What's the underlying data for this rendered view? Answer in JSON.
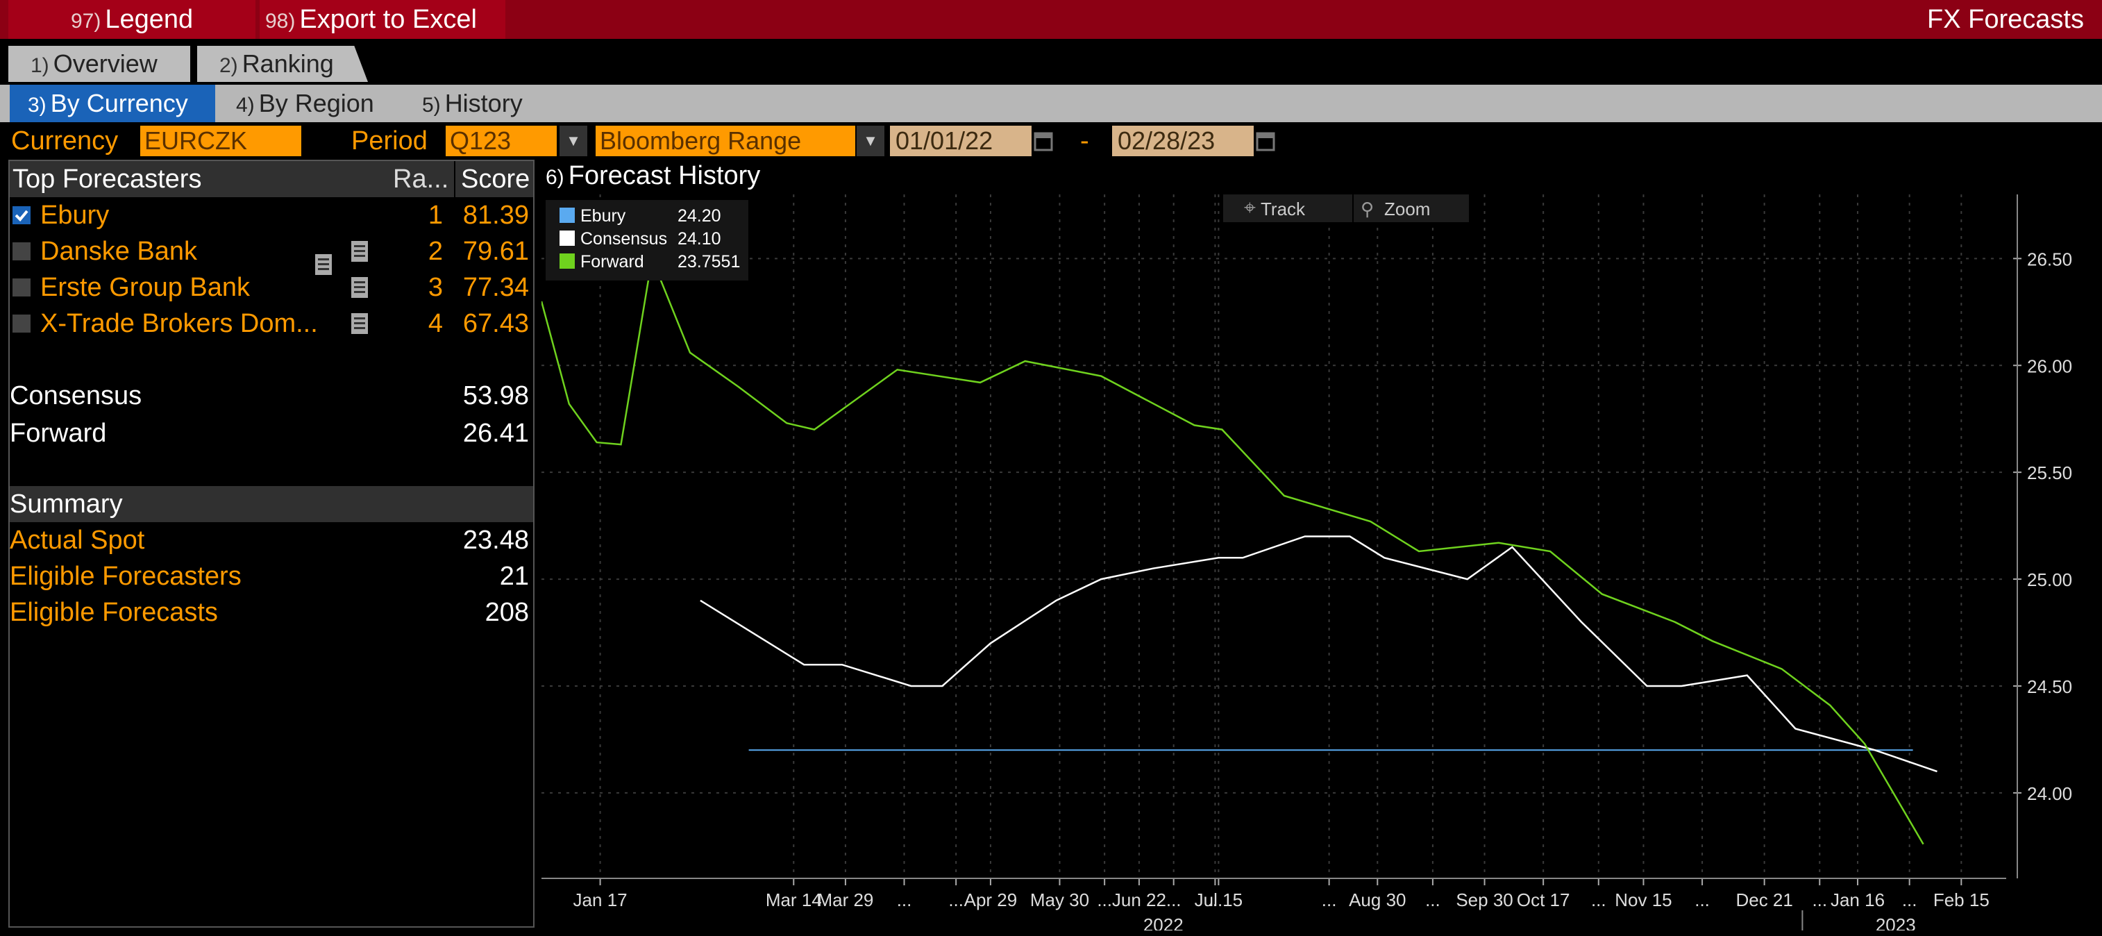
{
  "topbar": {
    "legend_num": "97)",
    "legend_label": "Legend",
    "export_num": "98)",
    "export_label": "Export to Excel",
    "title": "FX Forecasts",
    "bg_color": "#8c0014"
  },
  "tabs": [
    {
      "num": "1)",
      "label": "Overview"
    },
    {
      "num": "2)",
      "label": "Ranking"
    }
  ],
  "subtabs": [
    {
      "num": "3)",
      "label": "By Currency",
      "active": true
    },
    {
      "num": "4)",
      "label": "By Region"
    },
    {
      "num": "5)",
      "label": "History"
    }
  ],
  "filters": {
    "currency_label": "Currency",
    "currency_value": "EURCZK",
    "period_label": "Period",
    "period_value": "Q123",
    "range_value": "Bloomberg Range",
    "date_from": "01/01/22",
    "date_sep": "-",
    "date_to": "02/28/23",
    "accent_color": "#ff9a00"
  },
  "left_panel": {
    "header": {
      "col1": "Top Forecasters",
      "col2": "Ra...",
      "col3": "Score"
    },
    "forecasters": [
      {
        "name": "Ebury",
        "rank": "1",
        "score": "81.39",
        "checked": true
      },
      {
        "name": "Danske Bank",
        "rank": "2",
        "score": "79.61",
        "checked": false
      },
      {
        "name": "Erste Group Bank",
        "rank": "3",
        "score": "77.34",
        "checked": false
      },
      {
        "name": "X-Trade Brokers Dom...",
        "rank": "4",
        "score": "67.43",
        "checked": false
      }
    ],
    "consensus_label": "Consensus",
    "consensus_value": "53.98",
    "forward_label": "Forward",
    "forward_value": "26.41",
    "summary_header": "Summary",
    "summary": [
      {
        "label": "Actual Spot",
        "value": "23.48"
      },
      {
        "label": "Eligible Forecasters",
        "value": "21"
      },
      {
        "label": "Eligible Forecasts",
        "value": "208"
      }
    ]
  },
  "chart": {
    "num": "6)",
    "title": "Forecast History",
    "track_label": "Track",
    "zoom_label": "Zoom"
  },
  "chart_data": {
    "type": "line",
    "legend_position": "top-left",
    "grid": true,
    "ylim": [
      23.6,
      26.8
    ],
    "yticks": [
      "26.50",
      "26.00",
      "25.50",
      "25.00",
      "24.50",
      "24.00"
    ],
    "ytick_values": [
      26.5,
      26.0,
      25.5,
      25.0,
      24.5,
      24.0
    ],
    "xticks": [
      "Jan 17",
      "Mar 14",
      "...",
      "Mar 29",
      "...",
      "Apr 29",
      "...",
      "May 30",
      "...",
      "Jun 22",
      "...",
      "Jul 15",
      "...",
      "Aug 30",
      "...",
      "Sep 30",
      "Oct 17",
      "...",
      "Nov 15",
      "...",
      "Dec 21",
      "...",
      "Jan 16",
      "...",
      "Feb 15"
    ],
    "xtick_values": [
      17,
      73,
      105,
      88,
      120,
      130,
      163,
      150,
      183,
      173,
      195,
      196,
      228,
      242,
      258,
      273,
      290,
      306,
      319,
      336,
      354,
      370,
      381,
      396,
      411
    ],
    "year_labels": [
      {
        "label": "2022",
        "x": 180
      },
      {
        "label": "2023",
        "x": 392
      }
    ],
    "series": [
      {
        "name": "Ebury",
        "legend_value": "24.20",
        "color": "#5aaaf0",
        "x": [
          60,
          397
        ],
        "y": [
          24.2,
          24.2
        ]
      },
      {
        "name": "Consensus",
        "legend_value": "24.10",
        "color": "#ffffff",
        "x": [
          46,
          76,
          87,
          107,
          116,
          130,
          149,
          162,
          177,
          196,
          203,
          221,
          234,
          244,
          268,
          281,
          301,
          320,
          330,
          349,
          363,
          386,
          404
        ],
        "y": [
          24.9,
          24.6,
          24.6,
          24.5,
          24.5,
          24.7,
          24.9,
          25.0,
          25.05,
          25.1,
          25.1,
          25.2,
          25.2,
          25.1,
          25.0,
          25.15,
          24.8,
          24.5,
          24.5,
          24.55,
          24.3,
          24.2,
          24.1
        ]
      },
      {
        "name": "Forward",
        "legend_value": "23.7551",
        "color": "#6fd21e",
        "x": [
          0,
          8,
          16,
          23,
          32,
          43,
          57,
          71,
          79,
          103,
          127,
          140,
          162,
          189,
          197,
          215,
          240,
          254,
          277,
          292,
          307,
          328,
          339,
          359,
          373,
          383,
          400
        ],
        "y": [
          26.3,
          25.82,
          25.64,
          25.63,
          26.5,
          26.06,
          25.9,
          25.73,
          25.7,
          25.98,
          25.92,
          26.02,
          25.95,
          25.72,
          25.7,
          25.39,
          25.27,
          25.13,
          25.17,
          25.13,
          24.93,
          24.8,
          24.71,
          24.58,
          24.41,
          24.23,
          23.76
        ]
      }
    ]
  }
}
